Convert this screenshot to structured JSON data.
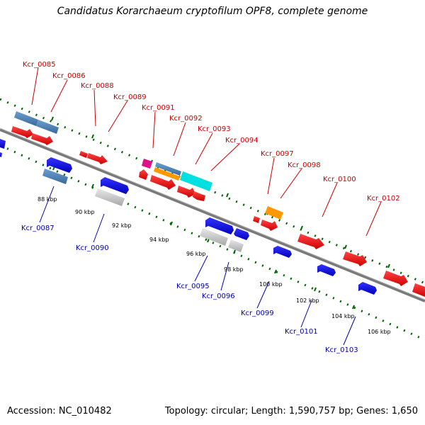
{
  "title": "Candidatus Korarchaeum cryptofilum OPF8, complete genome",
  "accession": "Accession: NC_010482",
  "stats": "Topology: circular; Length: 1,590,757 bp; Genes: 1,650",
  "colors": {
    "backbone": "#808080",
    "forward_red": "#ee0000",
    "reverse_blue": "#0000ee",
    "steel_blue": "#4a7fb5",
    "grey": "#c0c0c0",
    "cyan": "#00dddd",
    "magenta": "#dd0088",
    "orange": "#ff9900",
    "dots": "#006600",
    "label_top": "#cc0000",
    "label_bottom": "#0000aa"
  },
  "scale_labels": [
    "88 kbp",
    "90 kbp",
    "92 kbp",
    "94 kbp",
    "96 kbp",
    "98 kbp",
    "100 kbp",
    "102 kbp",
    "104 kbp",
    "106 kbp"
  ],
  "top_labels": [
    "Kcr_0085",
    "Kcr_0086",
    "Kcr_0088",
    "Kcr_0089",
    "Kcr_0091",
    "Kcr_0092",
    "Kcr_0093",
    "Kcr_0094",
    "Kcr_0097",
    "Kcr_0098",
    "Kcr_0100",
    "Kcr_0102"
  ],
  "bottom_labels": [
    "Kcr_0087",
    "Kcr_0090",
    "Kcr_0095",
    "Kcr_0096",
    "Kcr_0099",
    "Kcr_0101",
    "Kcr_0103"
  ]
}
